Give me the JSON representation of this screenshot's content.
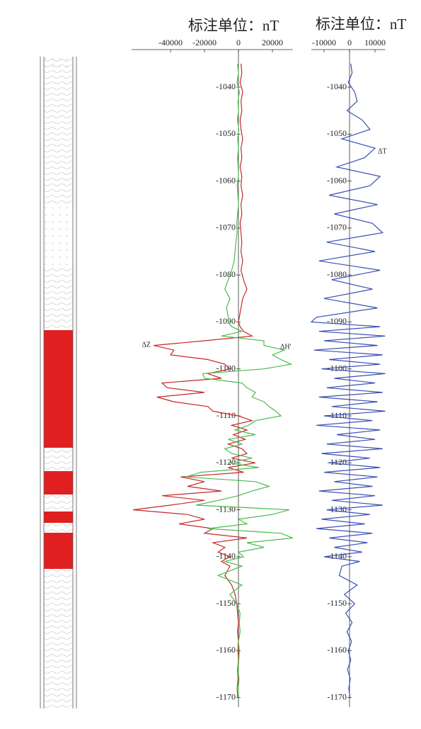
{
  "chart_data": [
    {
      "type": "line",
      "title": "标注单位：nT",
      "xlim": [
        -63000,
        32000
      ],
      "xticks": [
        -40000,
        -20000,
        0,
        20000
      ],
      "ylim": [
        -1032,
        -1172
      ],
      "yticks": [
        -1040,
        -1050,
        -1060,
        -1070,
        -1080,
        -1090,
        -1100,
        -1110,
        -1120,
        -1130,
        -1140,
        -1150,
        -1160,
        -1170
      ],
      "y": [
        -1035,
        -1037,
        -1039,
        -1041,
        -1043,
        -1045,
        -1047,
        -1049,
        -1051,
        -1053,
        -1055,
        -1057,
        -1059,
        -1061,
        -1063,
        -1065,
        -1067,
        -1069,
        -1071,
        -1073,
        -1075,
        -1077,
        -1079,
        -1081,
        -1083,
        -1085,
        -1087,
        -1089,
        -1090,
        -1091,
        -1092,
        -1093,
        -1094,
        -1095,
        -1096,
        -1097,
        -1098,
        -1099,
        -1100,
        -1101,
        -1102,
        -1103,
        -1104,
        -1105,
        -1106,
        -1107,
        -1108,
        -1109,
        -1110,
        -1111,
        -1112,
        -1113,
        -1114,
        -1115,
        -1116,
        -1117,
        -1118,
        -1119,
        -1120,
        -1121,
        -1122,
        -1123,
        -1124,
        -1125,
        -1126,
        -1127,
        -1128,
        -1129,
        -1130,
        -1131,
        -1132,
        -1133,
        -1134,
        -1135,
        -1136,
        -1137,
        -1138,
        -1139,
        -1140,
        -1141,
        -1142,
        -1144,
        -1146,
        -1148,
        -1150,
        -1152,
        -1154,
        -1156,
        -1158,
        -1160,
        -1162,
        -1164,
        -1166,
        -1168,
        -1170
      ],
      "series": [
        {
          "name": "ΔZ",
          "color": "#c62828",
          "values": [
            1500,
            2000,
            1000,
            2500,
            1500,
            2000,
            1000,
            1500,
            2500,
            1500,
            2000,
            1000,
            2000,
            1500,
            2500,
            1500,
            2000,
            1000,
            1500,
            2000,
            1500,
            2500,
            1500,
            3000,
            5000,
            2500,
            1500,
            500,
            0,
            1000,
            3000,
            8000,
            -20000,
            -50000,
            -38000,
            -40000,
            -18000,
            -8000,
            -5000,
            -18000,
            -10000,
            -45000,
            -42000,
            -20000,
            -48000,
            -38000,
            -18000,
            -15000,
            0,
            8000,
            -4000,
            5000,
            -3000,
            4000,
            -6000,
            2000,
            5000,
            -4000,
            10000,
            -6000,
            3000,
            -34000,
            -20000,
            -30000,
            -10000,
            -45000,
            -20000,
            -40000,
            -62000,
            -30000,
            -20000,
            -35000,
            -15000,
            -20000,
            5000,
            -15000,
            -8000,
            -12000,
            -5000,
            -10000,
            -5000,
            -8000,
            -4000,
            -2000,
            -1000,
            -500,
            0,
            -500,
            0,
            -300,
            0,
            -500,
            -200,
            -800,
            -500
          ]
        },
        {
          "name": "ΔH'",
          "color": "#4cbb4c",
          "values": [
            -500,
            0,
            -800,
            500,
            -300,
            0,
            -600,
            200,
            -400,
            0,
            -500,
            -200,
            0,
            -700,
            -300,
            0,
            -500,
            -1000,
            -800,
            -1500,
            -2000,
            -2500,
            -4000,
            -6000,
            -8000,
            -5000,
            -7000,
            -6000,
            -6000,
            -4000,
            2000,
            -10000,
            15000,
            15000,
            27000,
            20000,
            25000,
            31000,
            15000,
            -21000,
            -20000,
            2000,
            5000,
            10000,
            8000,
            15000,
            18000,
            22000,
            25000,
            10000,
            6000,
            -2000,
            10000,
            -6000,
            2000,
            -8000,
            -4000,
            8000,
            -6000,
            12000,
            -22000,
            -31000,
            10000,
            18000,
            8000,
            0,
            -12000,
            -25000,
            30000,
            20000,
            0,
            5000,
            -18000,
            25000,
            32000,
            5000,
            15000,
            0,
            3000,
            -8000,
            2000,
            -12000,
            2000,
            -5000,
            -1000,
            1000,
            500,
            1000,
            0,
            500,
            200,
            -200,
            300,
            0,
            100
          ]
        }
      ]
    },
    {
      "type": "line",
      "title": "标注单位：nT",
      "xlim": [
        -15000,
        14000
      ],
      "xticks": [
        -10000,
        0,
        10000
      ],
      "ylim": [
        -1032,
        -1172
      ],
      "yticks": [
        -1040,
        -1050,
        -1060,
        -1070,
        -1080,
        -1090,
        -1100,
        -1110,
        -1120,
        -1130,
        -1140,
        -1150,
        -1160,
        -1170
      ],
      "y": [
        -1035,
        -1037,
        -1039,
        -1041,
        -1043,
        -1045,
        -1047,
        -1049,
        -1051,
        -1053,
        -1055,
        -1057,
        -1059,
        -1061,
        -1063,
        -1065,
        -1067,
        -1069,
        -1071,
        -1073,
        -1075,
        -1077,
        -1079,
        -1081,
        -1083,
        -1085,
        -1087,
        -1089,
        -1090,
        -1091,
        -1092,
        -1093,
        -1094,
        -1095,
        -1096,
        -1097,
        -1098,
        -1099,
        -1100,
        -1101,
        -1102,
        -1103,
        -1104,
        -1105,
        -1106,
        -1107,
        -1108,
        -1109,
        -1110,
        -1111,
        -1112,
        -1113,
        -1114,
        -1115,
        -1116,
        -1117,
        -1118,
        -1119,
        -1120,
        -1121,
        -1122,
        -1123,
        -1124,
        -1125,
        -1126,
        -1127,
        -1128,
        -1129,
        -1130,
        -1131,
        -1132,
        -1133,
        -1134,
        -1135,
        -1136,
        -1137,
        -1138,
        -1139,
        -1140,
        -1141,
        -1142,
        -1144,
        -1146,
        -1148,
        -1150,
        -1152,
        -1154,
        -1156,
        -1158,
        -1160,
        -1162,
        -1164,
        -1166,
        -1168,
        -1170
      ],
      "series": [
        {
          "name": "ΔT",
          "color": "#3a4fb5",
          "values": [
            500,
            1000,
            -500,
            2000,
            3000,
            -1000,
            5000,
            8000,
            -3000,
            10000,
            6000,
            -5000,
            12000,
            8000,
            -8000,
            11000,
            -6000,
            9000,
            13000,
            -9000,
            10000,
            -12000,
            12000,
            -7000,
            9000,
            -10000,
            11000,
            -13000,
            -15000,
            12000,
            -12000,
            14000,
            -10000,
            11000,
            -14000,
            13000,
            -8000,
            12000,
            -11000,
            14000,
            -6000,
            10000,
            -9000,
            13000,
            -12000,
            11000,
            -7000,
            14000,
            -10000,
            9000,
            -13000,
            12000,
            -5000,
            10000,
            -9000,
            13000,
            -11000,
            8000,
            -8000,
            12000,
            -10000,
            11000,
            -6000,
            9000,
            -12000,
            10000,
            -7000,
            13000,
            -9000,
            8000,
            -11000,
            6000,
            -13000,
            9000,
            -8000,
            7000,
            -6000,
            5000,
            -10000,
            4000,
            -3000,
            -4000,
            3000,
            -2000,
            2000,
            -1500,
            1000,
            -1000,
            800,
            -500,
            500,
            -800,
            300,
            -300,
            200
          ]
        }
      ]
    }
  ]
}
